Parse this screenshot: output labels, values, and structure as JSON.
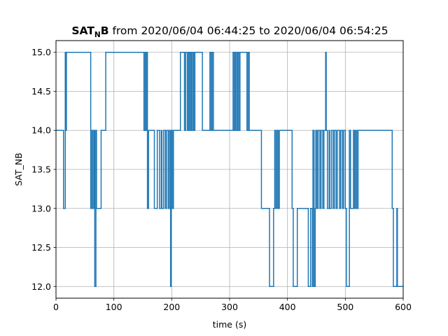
{
  "chart_data": {
    "type": "line",
    "title": {
      "bold_main": "SAT",
      "bold_sub": "N",
      "bold_after": "B",
      "rest": " from 2020/06/04 06:44:25 to 2020/06/04 06:54:25"
    },
    "xlabel": "time (s)",
    "ylabel": "SAT_NB",
    "xlim": [
      0,
      600
    ],
    "ylim": [
      11.85,
      15.15
    ],
    "xticks": [
      0,
      100,
      200,
      300,
      400,
      500,
      600
    ],
    "yticks": [
      12.0,
      12.5,
      13.0,
      13.5,
      14.0,
      14.5,
      15.0
    ],
    "xtick_labels": [
      "0",
      "100",
      "200",
      "300",
      "400",
      "500",
      "600"
    ],
    "ytick_labels": [
      "12.0",
      "12.5",
      "13.0",
      "13.5",
      "14.0",
      "14.5",
      "15.0"
    ],
    "grid": true,
    "line_style": "steps-post",
    "color": "#1f77b4",
    "series": [
      {
        "x": [
          0,
          6,
          13,
          16,
          17,
          18,
          60,
          62,
          64,
          66,
          67,
          69,
          70,
          78,
          86,
          152,
          154,
          155,
          157,
          158,
          160,
          166,
          170,
          175,
          179,
          182,
          183,
          186,
          189,
          191,
          194,
          196,
          198,
          199,
          200,
          201,
          203,
          204,
          215,
          222,
          224,
          227,
          229,
          231,
          232,
          234,
          236,
          238,
          240,
          253,
          255,
          266,
          268,
          270,
          272,
          274,
          306,
          308,
          310,
          312,
          314,
          316,
          318,
          330,
          332,
          334,
          342,
          355,
          369,
          376,
          378,
          380,
          382,
          384,
          386,
          390,
          396,
          408,
          410,
          417,
          436,
          440,
          443,
          444,
          446,
          448,
          449,
          451,
          453,
          456,
          458,
          461,
          463,
          466,
          467,
          469,
          472,
          473,
          476,
          479,
          481,
          484,
          486,
          490,
          492,
          495,
          497,
          500,
          502,
          507,
          509,
          514,
          516,
          518,
          520,
          522,
          524,
          581,
          583,
          589,
          590,
          600
        ],
        "y": [
          14,
          14,
          13,
          15,
          14,
          15,
          13,
          14,
          13,
          14,
          12,
          14,
          13,
          14,
          15,
          14,
          15,
          14,
          15,
          13,
          14,
          14,
          13,
          14,
          13,
          14,
          13,
          14,
          13,
          14,
          13,
          14,
          12,
          13,
          14,
          13,
          14,
          14,
          15,
          14,
          15,
          14,
          15,
          14,
          15,
          14,
          15,
          14,
          15,
          14,
          14,
          15,
          14,
          15,
          14,
          14,
          15,
          14,
          15,
          14,
          15,
          14,
          15,
          14,
          15,
          14,
          14,
          13,
          12,
          13,
          14,
          13,
          14,
          13,
          14,
          14,
          14,
          13,
          12,
          13,
          12,
          13,
          12,
          14,
          12,
          13,
          14,
          13,
          14,
          13,
          14,
          13,
          14,
          15,
          14,
          13,
          14,
          13,
          14,
          13,
          14,
          13,
          14,
          13,
          14,
          13,
          14,
          13,
          12,
          14,
          13,
          14,
          13,
          14,
          13,
          14,
          14,
          13,
          12,
          13,
          12,
          12
        ]
      }
    ]
  }
}
